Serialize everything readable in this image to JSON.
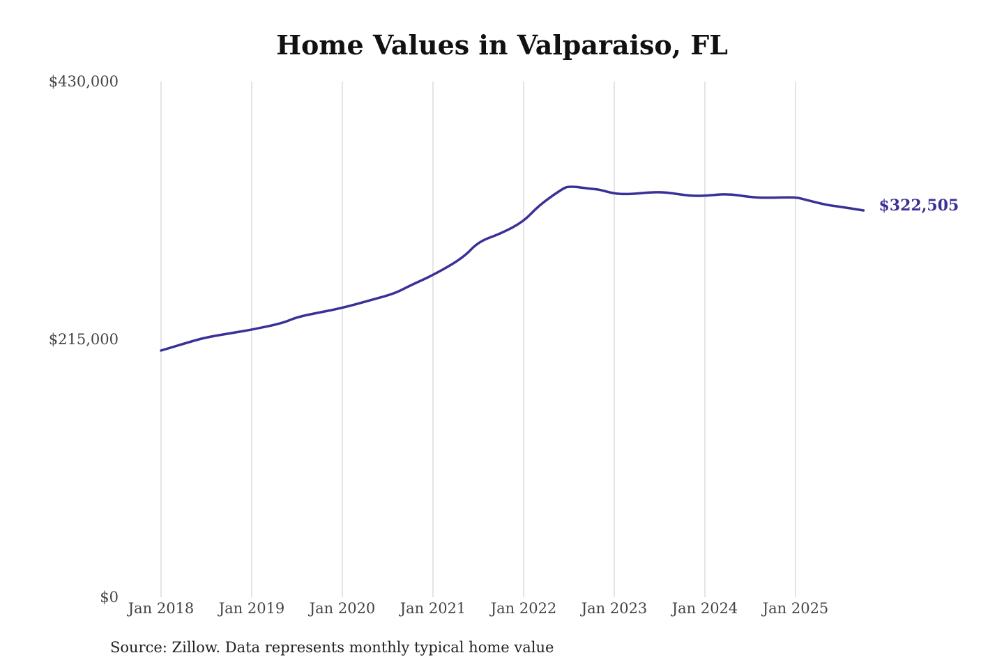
{
  "chart_data": {
    "type": "line",
    "title": "Home Values in Valparaiso, FL",
    "xlabel": "",
    "ylabel": "",
    "ylim": [
      0,
      430000
    ],
    "y_ticks": [
      "$430,000",
      "$215,000",
      "$0"
    ],
    "y_tick_values": [
      430000,
      215000,
      0
    ],
    "x_ticks": [
      "Jan 2018",
      "Jan 2019",
      "Jan 2020",
      "Jan 2021",
      "Jan 2022",
      "Jan 2023",
      "Jan 2024",
      "Jan 2025"
    ],
    "x_tick_values": [
      "2018-01",
      "2019-01",
      "2020-01",
      "2021-01",
      "2022-01",
      "2023-01",
      "2024-01",
      "2025-01"
    ],
    "grid": "vertical",
    "line_color": "#3a3196",
    "end_label": "$322,505",
    "series": [
      {
        "x": [
          "2018-01",
          "2018-05",
          "2018-07",
          "2018-11",
          "2019-01",
          "2019-05",
          "2019-07",
          "2019-10",
          "2020-01",
          "2020-05",
          "2020-08",
          "2020-10",
          "2021-01",
          "2021-05",
          "2021-07",
          "2021-10",
          "2022-01",
          "2022-03",
          "2022-06",
          "2022-07",
          "2022-10",
          "2022-11",
          "2023-01",
          "2023-03",
          "2023-06",
          "2023-08",
          "2023-11",
          "2024-01",
          "2024-04",
          "2024-07",
          "2024-09",
          "2025-01",
          "2025-02",
          "2025-05",
          "2025-07",
          "2025-10"
        ],
        "values": [
          205700,
          213300,
          216700,
          221000,
          223100,
          228400,
          233600,
          237500,
          241200,
          248100,
          253400,
          260000,
          268500,
          283000,
          296400,
          303300,
          313200,
          326600,
          340000,
          342900,
          340500,
          340000,
          336500,
          336000,
          337800,
          337500,
          334700,
          334700,
          336500,
          333600,
          333000,
          333600,
          332000,
          327200,
          325500,
          322505
        ]
      }
    ]
  },
  "source": "Source: Zillow. Data represents monthly typical home value"
}
